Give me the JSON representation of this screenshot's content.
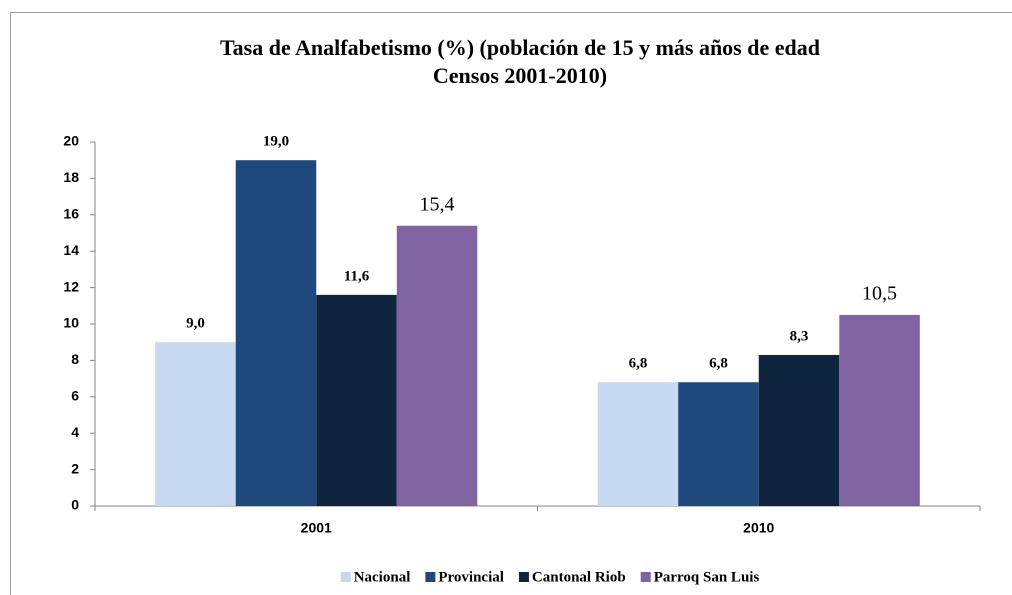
{
  "chart_data": {
    "type": "bar",
    "title": [
      "Tasa de Analfabetismo (%) (población de 15 y más años de edad",
      "Censos 2001-2010)"
    ],
    "categories": [
      "2001",
      "2010"
    ],
    "series": [
      {
        "name": "Nacional",
        "color": "#c6d9f1",
        "values": [
          9.0,
          6.8
        ],
        "value_labels": [
          "9,0",
          "6,8"
        ]
      },
      {
        "name": "Provincial",
        "color": "#1f497d",
        "values": [
          19.0,
          6.8
        ],
        "value_labels": [
          "19,0",
          "6,8"
        ]
      },
      {
        "name": "Cantonal Riob",
        "color": "#0f243e",
        "values": [
          11.6,
          8.3
        ],
        "value_labels": [
          "11,6",
          "8,3"
        ]
      },
      {
        "name": "Parroq San Luis",
        "color": "#8064a2",
        "values": [
          15.4,
          10.5
        ],
        "value_labels": [
          "15,4",
          "10,5"
        ]
      }
    ],
    "ylim": [
      0,
      20
    ],
    "yticks": [
      0,
      2,
      4,
      6,
      8,
      10,
      12,
      14,
      16,
      18,
      20
    ],
    "grid": false,
    "legend": "bottom"
  }
}
